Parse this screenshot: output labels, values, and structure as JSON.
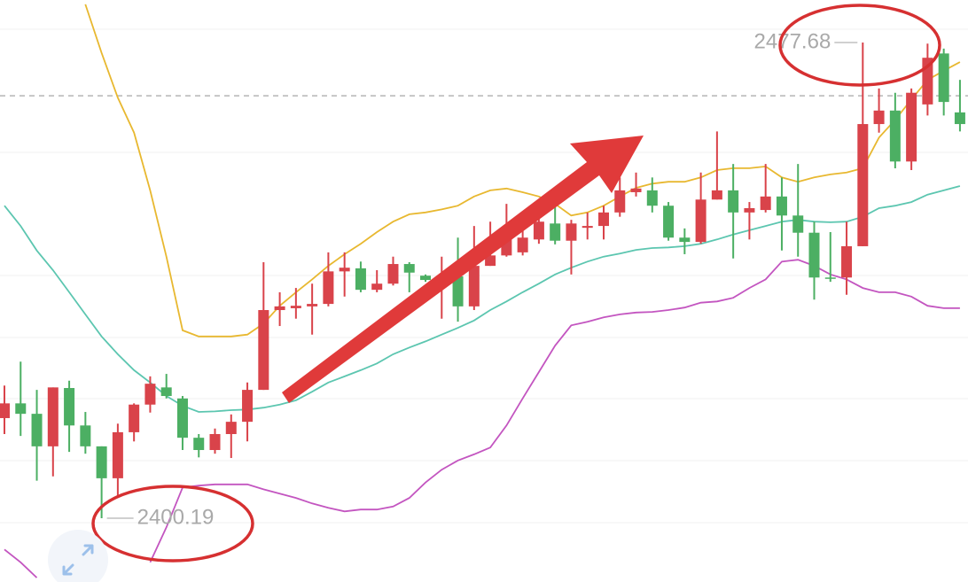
{
  "chart_data": {
    "type": "candlestick",
    "up_color": "#d9434a",
    "down_color": "#4caf63",
    "open": [
      2416.5,
      2418.9,
      2417.2,
      2411.9,
      2421.4,
      2415.3,
      2411.9,
      2406.7,
      2414.2,
      2418.7,
      2421.5,
      2419.7,
      2413.3,
      2411.3,
      2413.9,
      2415.9,
      2421.1,
      2434.1,
      2434.4,
      2434.7,
      2435.1,
      2440.4,
      2440.9,
      2437.4,
      2438.4,
      2441.6,
      2439.7,
      2439.0,
      2439.6,
      2434.7,
      2441.3,
      2443.0,
      2443.5,
      2445.6,
      2448.2,
      2445.4,
      2447.5,
      2447.8,
      2450.0,
      2453.3,
      2453.6,
      2451.1,
      2445.9,
      2445.2,
      2452.1,
      2453.6,
      2450.0,
      2450.4,
      2452.6,
      2449.5,
      2446.7,
      2439.4,
      2439.4,
      2444.5,
      2464.4,
      2466.6,
      2458.3,
      2467.6,
      2475.9,
      2466.3
    ],
    "high": [
      2421.8,
      2425.7,
      2421.1,
      2421.5,
      2422.6,
      2417.5,
      2411.9,
      2415.6,
      2418.9,
      2423.3,
      2423.7,
      2420.1,
      2413.9,
      2414.8,
      2417.1,
      2422.3,
      2441.9,
      2437.0,
      2437.7,
      2438.4,
      2443.5,
      2443.5,
      2442.0,
      2440.6,
      2442.8,
      2441.9,
      2439.9,
      2442.8,
      2445.9,
      2447.8,
      2448.5,
      2451.4,
      2447.8,
      2450.0,
      2451.4,
      2448.8,
      2450.0,
      2451.1,
      2455.7,
      2456.5,
      2455.7,
      2451.7,
      2447.4,
      2456.5,
      2463.2,
      2457.9,
      2451.7,
      2457.9,
      2455.7,
      2457.9,
      2448.5,
      2446.8,
      2448.5,
      2477.68,
      2470.2,
      2469.5,
      2470.2,
      2477.5,
      2476.7,
      2471.6
    ],
    "low": [
      2413.9,
      2413.6,
      2406.3,
      2407.0,
      2411.0,
      2410.7,
      2400.19,
      2403.8,
      2412.7,
      2417.4,
      2419.7,
      2411.3,
      2410.1,
      2410.7,
      2410.0,
      2412.7,
      2421.1,
      2431.5,
      2432.7,
      2430.1,
      2434.7,
      2436.3,
      2437.0,
      2437.0,
      2438.1,
      2437.0,
      2438.7,
      2432.7,
      2432.2,
      2434.1,
      2441.3,
      2442.8,
      2443.0,
      2444.9,
      2444.8,
      2439.9,
      2445.6,
      2445.6,
      2449.3,
      2452.6,
      2450.0,
      2445.4,
      2443.2,
      2444.9,
      2452.1,
      2442.5,
      2445.6,
      2450.0,
      2443.8,
      2442.8,
      2435.8,
      2438.7,
      2436.6,
      2444.5,
      2463.0,
      2457.2,
      2456.9,
      2465.8,
      2465.8,
      2463.2
    ],
    "close": [
      2418.9,
      2417.2,
      2411.9,
      2421.5,
      2415.3,
      2411.9,
      2406.7,
      2414.2,
      2418.7,
      2422.1,
      2420.1,
      2413.3,
      2411.3,
      2413.9,
      2415.9,
      2421.1,
      2434.1,
      2434.7,
      2434.8,
      2435.1,
      2440.4,
      2441.0,
      2437.4,
      2438.4,
      2441.6,
      2440.2,
      2439.0,
      2439.6,
      2434.7,
      2441.3,
      2443.0,
      2445.9,
      2445.9,
      2448.5,
      2445.4,
      2448.2,
      2447.8,
      2450.0,
      2453.6,
      2453.9,
      2451.1,
      2445.9,
      2445.2,
      2452.1,
      2453.6,
      2450.0,
      2450.7,
      2452.6,
      2449.5,
      2446.7,
      2439.4,
      2439.2,
      2444.5,
      2464.4,
      2466.6,
      2458.3,
      2469.5,
      2475.2,
      2468.0,
      2464.4
    ],
    "series": [
      {
        "color": "#e8b830",
        "values": [
          null,
          null,
          null,
          null,
          null,
          2483.9,
          2476.0,
          2468.7,
          2463.0,
          2453.6,
          2442.8,
          2430.8,
          2429.8,
          2429.8,
          2429.8,
          2430.1,
          2431.9,
          2434.8,
          2437.0,
          2439.1,
          2441.3,
          2443.2,
          2444.9,
          2446.8,
          2448.5,
          2449.7,
          2450.0,
          2450.5,
          2451.1,
          2452.6,
          2453.6,
          2453.9,
          2453.3,
          2452.6,
          2451.4,
          2449.5,
          2450.0,
          2451.1,
          2452.6,
          2454.0,
          2454.7,
          2455.0,
          2455.0,
          2455.7,
          2456.9,
          2457.2,
          2457.2,
          2457.5,
          2455.7,
          2455.0,
          2455.7,
          2456.2,
          2456.5,
          2457.2,
          2462.2,
          2465.1,
          2468.4,
          2471.6,
          2473.1,
          2474.5
        ]
      },
      {
        "color": "#5cc6b0",
        "values": [
          2451.1,
          2447.8,
          2443.8,
          2440.6,
          2437.0,
          2433.4,
          2429.8,
          2426.9,
          2424.3,
          2422.3,
          2420.1,
          2418.5,
          2417.5,
          2417.6,
          2417.8,
          2417.9,
          2418.2,
          2418.7,
          2419.4,
          2420.8,
          2422.3,
          2423.3,
          2424.3,
          2425.4,
          2426.9,
          2428.0,
          2429.0,
          2430.1,
          2431.2,
          2432.4,
          2434.1,
          2435.5,
          2437.0,
          2438.4,
          2439.9,
          2441.0,
          2442.0,
          2442.8,
          2443.3,
          2443.9,
          2444.2,
          2444.3,
          2444.5,
          2444.9,
          2445.6,
          2446.4,
          2447.1,
          2447.8,
          2448.5,
          2448.8,
          2448.5,
          2448.4,
          2448.5,
          2449.3,
          2450.7,
          2451.1,
          2451.7,
          2452.9,
          2453.6,
          2454.3
        ]
      },
      {
        "color": "#c355c0",
        "values": [
          2395.1,
          2393.0,
          2390.5,
          null,
          null,
          null,
          null,
          null,
          null,
          2393.0,
          2398.7,
          2405.2,
          2405.5,
          2405.7,
          2405.7,
          2405.7,
          2404.9,
          2404.2,
          2403.5,
          2402.6,
          2401.9,
          2401.3,
          2401.6,
          2401.6,
          2402.1,
          2403.5,
          2406.0,
          2408.1,
          2409.6,
          2410.6,
          2411.7,
          2415.3,
          2419.7,
          2424.0,
          2428.3,
          2431.6,
          2432.2,
          2432.9,
          2433.4,
          2433.7,
          2433.8,
          2434.1,
          2434.5,
          2435.3,
          2435.5,
          2436.1,
          2437.7,
          2439.1,
          2442.0,
          2442.3,
          2441.3,
          2439.9,
          2439.1,
          2437.7,
          2437.0,
          2437.0,
          2436.3,
          2434.8,
          2434.4,
          2434.4
        ]
      }
    ],
    "price_line": 2469.0,
    "annotations": {
      "high": 2477.68,
      "low": 2400.19
    },
    "ylim": [
      2389.8,
      2484.61
    ]
  }
}
